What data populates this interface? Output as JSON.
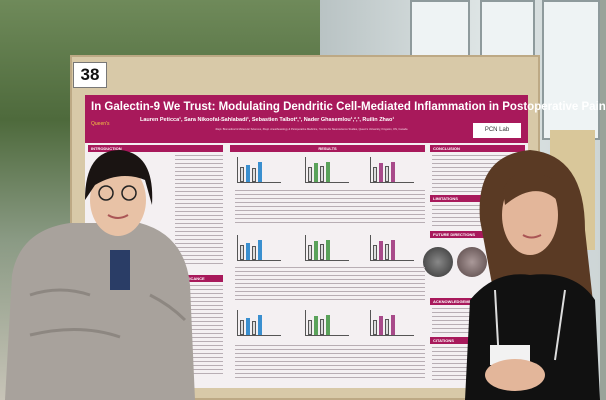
{
  "board": {
    "number": "38"
  },
  "poster": {
    "title": "In Galectin-9 We Trust: Modulating Dendritic Cell-Mediated Inflammation in Postoperative Pain",
    "authors": "Lauren Peticca¹, Sara Nikoofal-Sahlabadi¹, Sebastien Talbot²,³, Nader Ghasemlou¹,²,³, Ruilin Zhao¹",
    "affiliations": "¹Dept. Biomedical & Molecular Sciences, ²Dept. Anesthesiology & Perioperative Medicine, ³Centre for Neuroscience Studies, Queen's University, Kingston, ON, Canada",
    "logo": "Queen's",
    "lab_badge": "PCN Lab",
    "sections": {
      "introduction": "INTRODUCTION",
      "results": "RESULTS",
      "conclusion": "CONCLUSION",
      "limitations": "LIMITATIONS",
      "future": "FUTURE DIRECTIONS",
      "acknowledgements": "ACKNOWLEDGEMENTS",
      "citations": "CITATIONS",
      "significance": "SIGNIFICANCE"
    },
    "accent": "#a8195b"
  }
}
